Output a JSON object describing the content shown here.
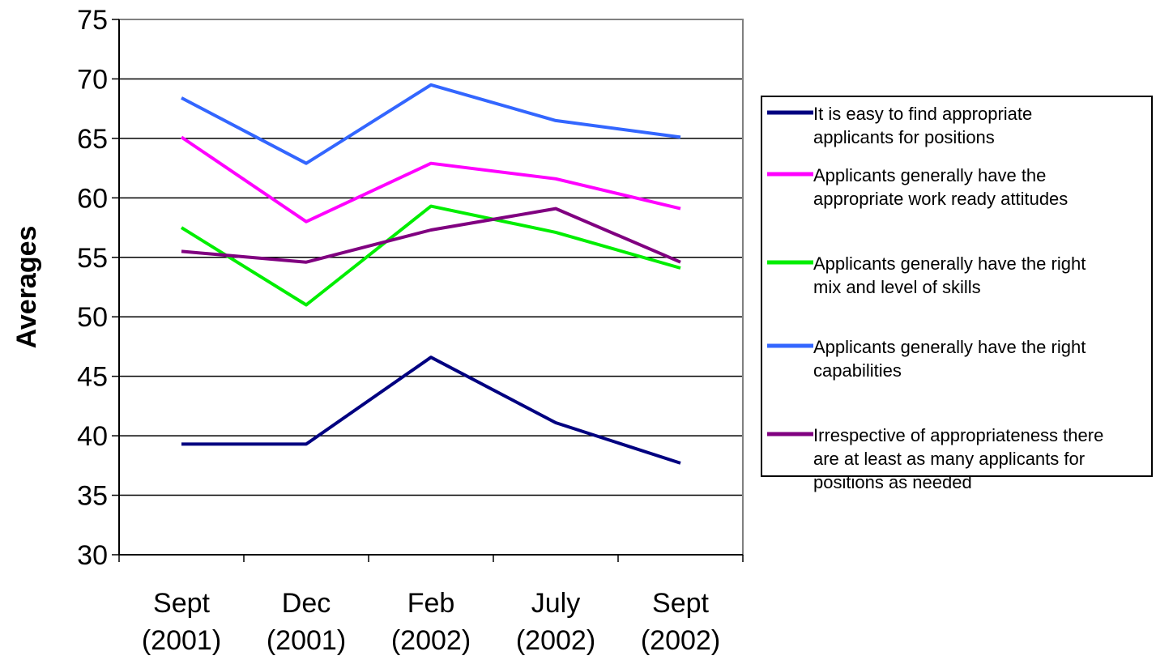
{
  "chart_data": {
    "type": "line",
    "title": "",
    "xlabel": "",
    "ylabel": "Averages",
    "ylim": [
      30,
      75
    ],
    "yticks": [
      30,
      35,
      40,
      45,
      50,
      55,
      60,
      65,
      70,
      75
    ],
    "grid": true,
    "legend_position": "right",
    "categories": [
      [
        "Sept",
        "(2001)"
      ],
      [
        "Dec",
        "(2001)"
      ],
      [
        "Feb",
        "(2002)"
      ],
      [
        "July",
        "(2002)"
      ],
      [
        "Sept",
        "(2002)"
      ]
    ],
    "series": [
      {
        "name": "It is easy to find appropriate applicants for positions",
        "legend_lines": [
          "It is easy to find appropriate",
          "applicants for positions"
        ],
        "color": "#000080",
        "values": [
          39.3,
          39.3,
          46.6,
          41.1,
          37.7
        ]
      },
      {
        "name": "Applicants generally have the appropriate work ready attitudes",
        "legend_lines": [
          "Applicants generally have the",
          "appropriate work ready attitudes"
        ],
        "color": "#ff00ff",
        "values": [
          65.1,
          58.0,
          62.9,
          61.6,
          59.1
        ]
      },
      {
        "name": "Applicants generally have the right mix and level of skills",
        "legend_lines": [
          "Applicants generally have the right",
          "mix and level of skills"
        ],
        "color": "#00ee00",
        "values": [
          57.5,
          51.0,
          59.3,
          57.1,
          54.1
        ]
      },
      {
        "name": "Applicants generally have the right capabilities",
        "legend_lines": [
          "Applicants generally have the right",
          "capabilities"
        ],
        "color": "#3366ff",
        "values": [
          68.4,
          62.9,
          69.5,
          66.5,
          65.1
        ]
      },
      {
        "name": "Irrespective of appropriateness there are at least as many applicants for positions as needed",
        "legend_lines": [
          "Irrespective of appropriateness there",
          "are at least as many applicants for",
          "positions as needed"
        ],
        "color": "#800080",
        "values": [
          55.5,
          54.6,
          57.3,
          59.1,
          54.6
        ]
      }
    ]
  }
}
